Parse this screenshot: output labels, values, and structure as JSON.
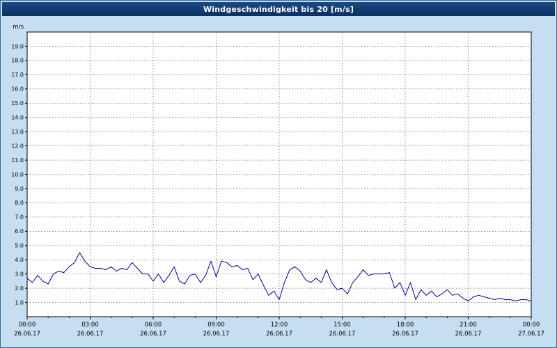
{
  "header": {
    "title": "Windgeschwindigkeit bis 20 [m/s]"
  },
  "colors": {
    "background": "#c6def1",
    "titlebar_top": "#1a4a84",
    "titlebar_bottom": "#0c3063",
    "title_text": "#ffffff",
    "plot_background": "#ffffff",
    "plot_frame": "#000000",
    "grid": "#444444",
    "tick": "#000000",
    "line": "#000099",
    "label_text": "#000000"
  },
  "chart_data": {
    "type": "line",
    "title": "Windgeschwindigkeit bis 20 [m/s]",
    "ylabel": "m/s",
    "xlabel": "",
    "ylim": [
      0,
      20
    ],
    "xlim_hours": [
      0,
      24
    ],
    "grid": "dashed",
    "legend": "none",
    "y_tick_labels": [
      "1.0",
      "2.0",
      "3.0",
      "4.0",
      "5.0",
      "6.0",
      "7.0",
      "8.0",
      "9.0",
      "10.0",
      "11.0",
      "12.0",
      "13.0",
      "14.0",
      "15.0",
      "16.0",
      "17.0",
      "18.0",
      "19.0"
    ],
    "x_ticks": [
      {
        "hour": 0,
        "time": "00:00",
        "date": "26.06.17"
      },
      {
        "hour": 3,
        "time": "03:00",
        "date": "26.06.17"
      },
      {
        "hour": 6,
        "time": "06:00",
        "date": "26.06.17"
      },
      {
        "hour": 9,
        "time": "09:00",
        "date": "26.06.17"
      },
      {
        "hour": 12,
        "time": "12:00",
        "date": "26.06.17"
      },
      {
        "hour": 15,
        "time": "15:00",
        "date": "26.06.17"
      },
      {
        "hour": 18,
        "time": "18:00",
        "date": "26.06.17"
      },
      {
        "hour": 21,
        "time": "21:00",
        "date": "26.06.17"
      },
      {
        "hour": 24,
        "time": "00:00",
        "date": "27.06.17"
      }
    ],
    "series": [
      {
        "name": "Windgeschwindigkeit",
        "unit": "m/s",
        "color": "#000099",
        "x_start_hour": 0,
        "x_step_hours": 0.25,
        "values": [
          2.7,
          2.4,
          2.9,
          2.5,
          2.3,
          3.0,
          3.2,
          3.1,
          3.5,
          3.8,
          4.5,
          3.9,
          3.5,
          3.4,
          3.4,
          3.3,
          3.5,
          3.2,
          3.4,
          3.3,
          3.8,
          3.4,
          3.0,
          3.0,
          2.5,
          3.0,
          2.4,
          2.9,
          3.5,
          2.5,
          2.3,
          2.9,
          3.0,
          2.4,
          2.9,
          3.9,
          2.8,
          3.9,
          3.8,
          3.5,
          3.6,
          3.3,
          3.4,
          2.6,
          3.0,
          2.2,
          1.5,
          1.8,
          1.2,
          2.4,
          3.3,
          3.5,
          3.2,
          2.6,
          2.4,
          2.7,
          2.4,
          3.3,
          2.4,
          1.9,
          2.0,
          1.6,
          2.4,
          2.8,
          3.3,
          2.9,
          3.0,
          3.0,
          3.0,
          3.1,
          2.0,
          2.4,
          1.5,
          2.4,
          1.2,
          1.9,
          1.5,
          1.8,
          1.4,
          1.6,
          1.9,
          1.5,
          1.6,
          1.3,
          1.1,
          1.4,
          1.5,
          1.4,
          1.3,
          1.2,
          1.3,
          1.2,
          1.2,
          1.1,
          1.2,
          1.2,
          1.1
        ]
      }
    ]
  }
}
